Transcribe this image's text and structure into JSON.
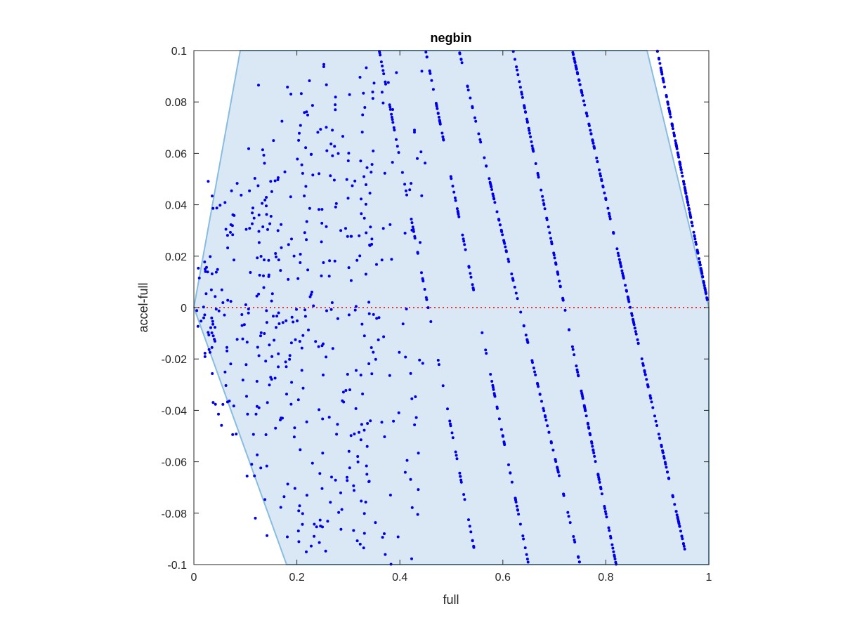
{
  "chart_data": {
    "type": "scatter",
    "title": "negbin",
    "xlabel": "full",
    "ylabel": "accel-full",
    "xlim": [
      0,
      1
    ],
    "ylim": [
      -0.1,
      0.1
    ],
    "xticks": [
      "0",
      "0.2",
      "0.4",
      "0.6",
      "0.8",
      "1"
    ],
    "xtick_values": [
      0,
      0.2,
      0.4,
      0.6,
      0.8,
      1
    ],
    "yticks": [
      "-0.1",
      "-0.08",
      "-0.06",
      "-0.04",
      "-0.02",
      "0",
      "0.02",
      "0.04",
      "0.06",
      "0.08",
      "0.1"
    ],
    "ytick_values": [
      -0.1,
      -0.08,
      -0.06,
      -0.04,
      -0.02,
      0,
      0.02,
      0.04,
      0.06,
      0.08,
      0.1
    ],
    "grid": false,
    "feasible_region": {
      "color": "#d9e8f4",
      "edge_color": "#88bde0",
      "vertices": [
        [
          0.0,
          0.0
        ],
        [
          0.09,
          0.1
        ],
        [
          0.88,
          0.1
        ],
        [
          1.0,
          0.0
        ],
        [
          1.0,
          -0.1
        ],
        [
          0.18,
          -0.1
        ]
      ]
    },
    "reference_line": {
      "y": 0,
      "color": "#e03a3a",
      "style": "dotted"
    },
    "series": [
      {
        "color": "#0000e6",
        "clusters": [
          {
            "x": [
              0.0,
              0.05
            ],
            "y": [
              -0.02,
              0.02
            ],
            "n": 30
          },
          {
            "x": [
              0.02,
              0.2
            ],
            "y": [
              -0.05,
              0.05
            ],
            "n": 120
          },
          {
            "x": [
              0.1,
              0.35
            ],
            "y": [
              -0.09,
              0.09
            ],
            "n": 180
          },
          {
            "x": [
              0.2,
              0.45
            ],
            "y": [
              -0.1,
              0.1
            ],
            "n": 160
          }
        ],
        "lines": [
          {
            "x": [
              0.9,
              1.0
            ],
            "y": [
              0.1,
              0.0
            ],
            "n": 130
          },
          {
            "x": [
              0.735,
              0.96
            ],
            "y": [
              0.1,
              -0.1
            ],
            "n": 170
          },
          {
            "x": [
              0.62,
              0.82
            ],
            "y": [
              0.1,
              -0.1
            ],
            "n": 130
          },
          {
            "x": [
              0.515,
              0.75
            ],
            "y": [
              0.1,
              -0.1
            ],
            "n": 110
          },
          {
            "x": [
              0.45,
              0.65
            ],
            "y": [
              0.1,
              -0.1
            ],
            "n": 90
          },
          {
            "x": [
              0.36,
              0.55
            ],
            "y": [
              0.1,
              -0.1
            ],
            "n": 70
          }
        ]
      }
    ]
  }
}
